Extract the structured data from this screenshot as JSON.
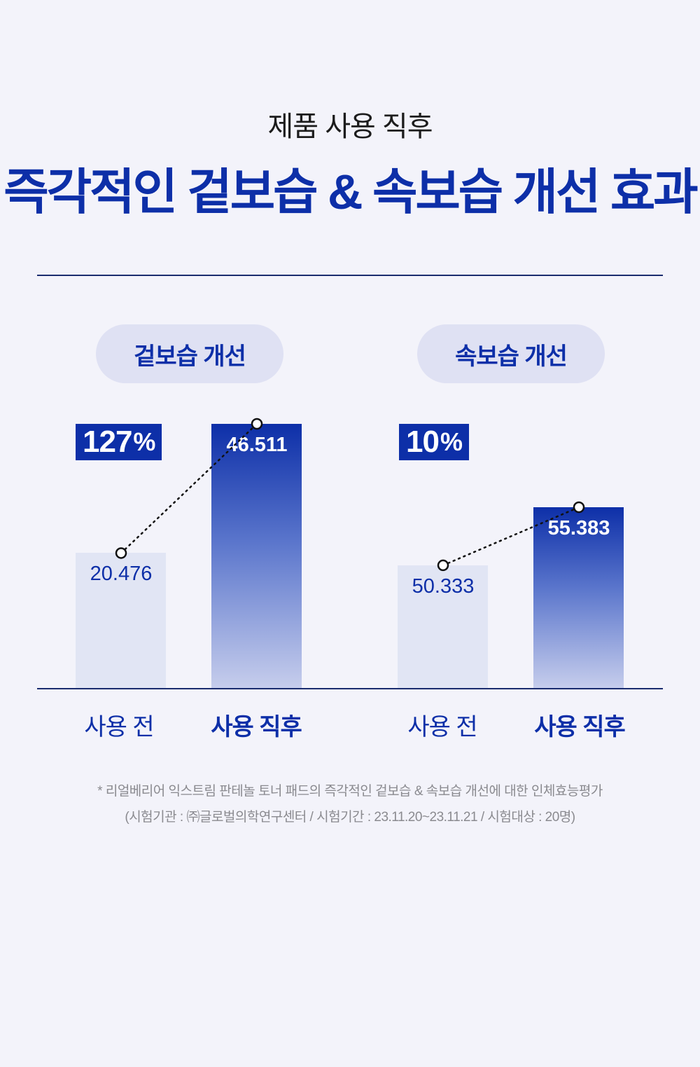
{
  "header": {
    "subtitle": "제품 사용 직후",
    "title": "즉각적인 겉보습 & 속보습 개선 효과"
  },
  "colors": {
    "accent": "#0d2fa8",
    "bar_before": "#e1e5f4",
    "pill_bg": "#dfe1f3",
    "background": "#f3f3fa"
  },
  "chart_data": [
    {
      "type": "bar",
      "title": "겉보습 개선",
      "categories": [
        "사용 전",
        "사용 직후"
      ],
      "values": [
        20.476,
        46.511
      ],
      "value_labels": [
        "20.476",
        "46.511"
      ],
      "improvement": "127",
      "improvement_unit": "%",
      "ylim": [
        0,
        60
      ]
    },
    {
      "type": "bar",
      "title": "속보습 개선",
      "categories": [
        "사용 전",
        "사용 직후"
      ],
      "values": [
        50.333,
        55.383
      ],
      "value_labels": [
        "50.333",
        "55.383"
      ],
      "improvement": "10",
      "improvement_unit": "%",
      "ylim": [
        0,
        60
      ]
    }
  ],
  "footnote": {
    "line1": "* 리얼베리어 익스트림 판테놀 토너 패드의 즉각적인 겉보습 & 속보습 개선에 대한 인체효능평가",
    "line2": "(시험기관 : ㈜글로벌의학연구센터 / 시험기간 : 23.11.20~23.11.21 / 시험대상 : 20명)"
  }
}
